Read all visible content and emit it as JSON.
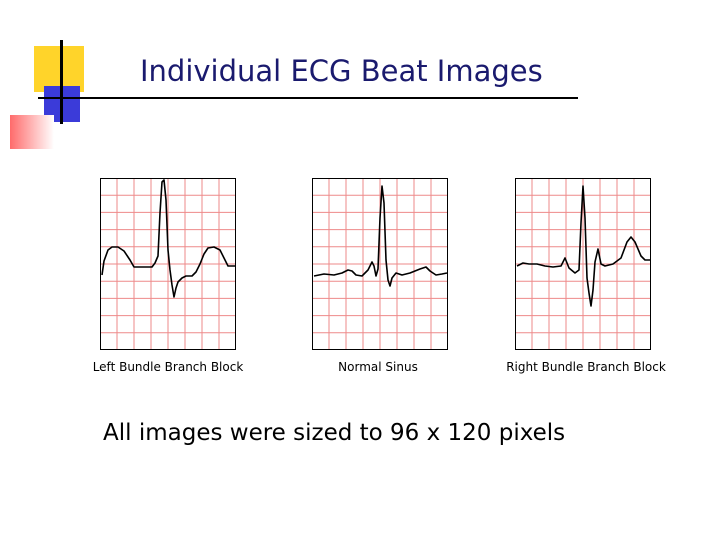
{
  "slide": {
    "title": "Individual ECG Beat Images",
    "footer": "All images were sized to 96 x 120 pixels",
    "colors": {
      "title": "#1a1a6e",
      "grid": "#ee8a8a",
      "trace": "#000000",
      "accent_yellow": "#ffd42a",
      "accent_blue": "#3b3bd9",
      "accent_red": "#ff6b6b"
    }
  },
  "beats": [
    {
      "label": "Left Bundle Branch Block"
    },
    {
      "label": "Normal Sinus"
    },
    {
      "label": "Right Bundle Branch Block"
    }
  ]
}
